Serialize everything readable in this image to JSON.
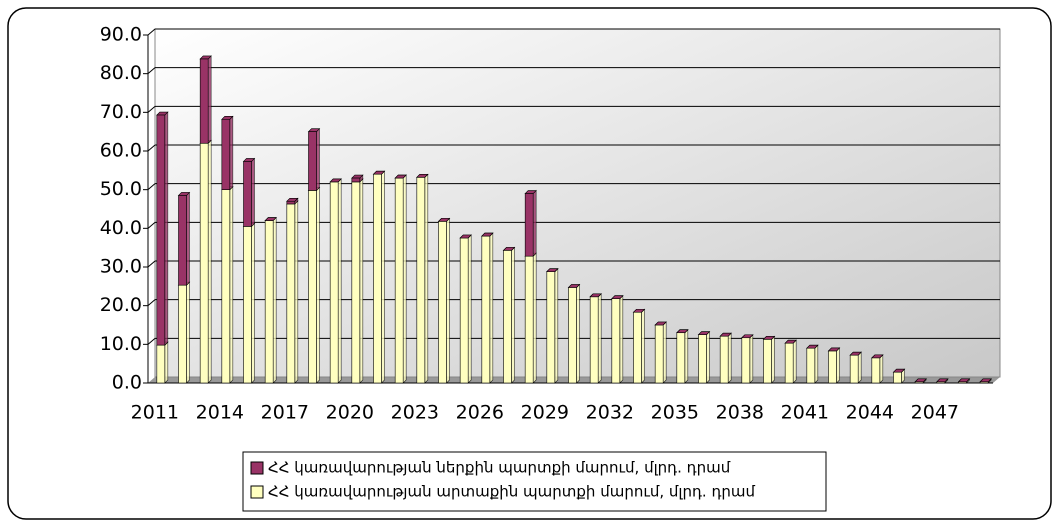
{
  "chart_data": {
    "type": "bar",
    "stacked": true,
    "categories": [
      "2011",
      null,
      null,
      "2014",
      null,
      null,
      "2017",
      null,
      null,
      "2020",
      null,
      null,
      "2023",
      null,
      null,
      "2026",
      null,
      null,
      "2029",
      null,
      null,
      "2032",
      null,
      null,
      "2035",
      null,
      null,
      "2038",
      null,
      null,
      "2041",
      null,
      null,
      "2044",
      null,
      null,
      "2047",
      null,
      null
    ],
    "series": [
      {
        "name": "ՀՀ կառավարության ներքին պարտքի մարում, մլրդ. դրամ",
        "color": "#993366",
        "values": [
          59.5,
          23.2,
          21.8,
          18.2,
          16.8,
          0,
          0.7,
          15.2,
          0,
          1.0,
          0,
          0,
          0,
          0,
          0,
          0,
          0,
          16.2,
          0,
          0,
          0,
          0,
          0,
          0,
          0,
          0,
          0,
          0,
          0,
          0,
          0,
          0,
          0,
          0,
          0,
          0,
          0,
          0,
          0
        ]
      },
      {
        "name": "ՀՀ կառավարության արտաքին պարտքի մարում, մլրդ. դրամ",
        "color": "#ffffc0",
        "values": [
          9.8,
          25.3,
          62,
          50,
          40.5,
          42,
          46.3,
          49.8,
          52,
          52,
          54,
          53,
          53.2,
          41.8,
          37.5,
          38,
          34.3,
          32.8,
          28.8,
          24.7,
          22.3,
          21.8,
          18.3,
          15,
          13,
          12.5,
          12.1,
          11.7,
          11.3,
          10.3,
          9,
          8.3,
          7.2,
          6.5,
          2.8,
          0.3,
          0.3,
          0.3,
          0.3
        ]
      }
    ],
    "ylim": [
      0,
      90
    ],
    "yticks": [
      {
        "value": 0,
        "label": "0.0"
      },
      {
        "value": 10,
        "label": "10.0"
      },
      {
        "value": 20,
        "label": "20.0"
      },
      {
        "value": 30,
        "label": "30.0"
      },
      {
        "value": 40,
        "label": "40.0"
      },
      {
        "value": 50,
        "label": "50.0"
      },
      {
        "value": 60,
        "label": "60.0"
      },
      {
        "value": 70,
        "label": "70.0"
      },
      {
        "value": 80,
        "label": "80.0"
      },
      {
        "value": 90,
        "label": "90.0"
      }
    ],
    "grid": true,
    "legend": "bottom"
  }
}
